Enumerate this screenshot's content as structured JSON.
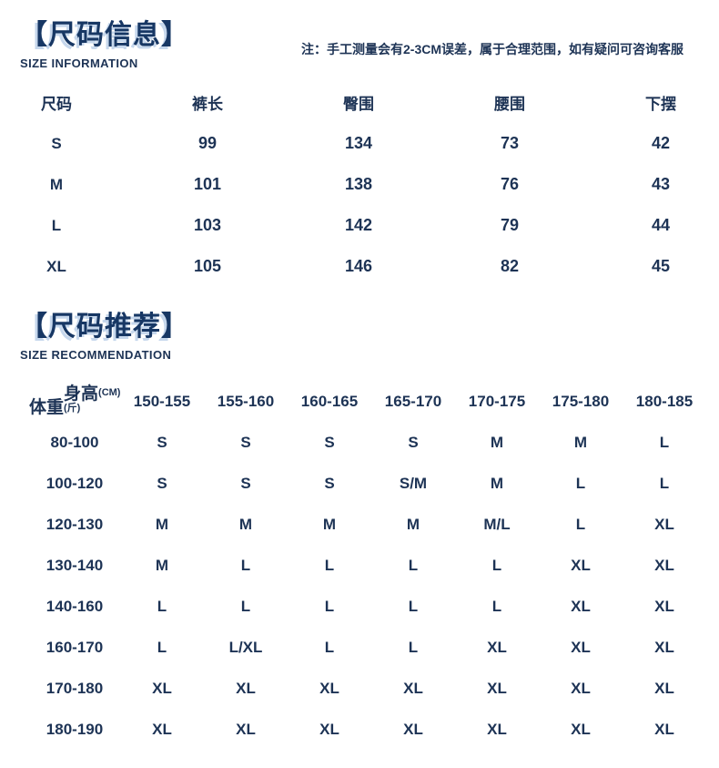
{
  "colors": {
    "text": "#1d3355",
    "title": "#173764",
    "title_shadow": "#c6d7ec",
    "background": "#ffffff"
  },
  "section_info": {
    "title": "【尺码信息】",
    "subtitle": "SIZE INFORMATION",
    "note": "注：手工测量会有2-3CM误差，属于合理范围，如有疑问可咨询客服"
  },
  "size_table": {
    "headers": [
      "尺码",
      "裤长",
      "臀围",
      "腰围",
      "下摆"
    ],
    "rows": [
      [
        "S",
        "99",
        "134",
        "73",
        "42"
      ],
      [
        "M",
        "101",
        "138",
        "76",
        "43"
      ],
      [
        "L",
        "103",
        "142",
        "79",
        "44"
      ],
      [
        "XL",
        "105",
        "146",
        "82",
        "45"
      ]
    ]
  },
  "section_recommend": {
    "title": "【尺码推荐】",
    "subtitle": "SIZE RECOMMENDATION"
  },
  "recommend_table": {
    "corner": {
      "weight_label": "体重",
      "weight_unit": "(斤)",
      "height_label": "身高",
      "height_unit": "(CM)"
    },
    "height_headers": [
      "150-155",
      "155-160",
      "160-165",
      "165-170",
      "170-175",
      "175-180",
      "180-185"
    ],
    "rows": [
      {
        "weight": "80-100",
        "values": [
          "S",
          "S",
          "S",
          "S",
          "M",
          "M",
          "L"
        ]
      },
      {
        "weight": "100-120",
        "values": [
          "S",
          "S",
          "S",
          "S/M",
          "M",
          "L",
          "L"
        ]
      },
      {
        "weight": "120-130",
        "values": [
          "M",
          "M",
          "M",
          "M",
          "M/L",
          "L",
          "XL"
        ]
      },
      {
        "weight": "130-140",
        "values": [
          "M",
          "L",
          "L",
          "L",
          "L",
          "XL",
          "XL"
        ]
      },
      {
        "weight": "140-160",
        "values": [
          "L",
          "L",
          "L",
          "L",
          "L",
          "XL",
          "XL"
        ]
      },
      {
        "weight": "160-170",
        "values": [
          "L",
          "L/XL",
          "L",
          "L",
          "XL",
          "XL",
          "XL"
        ]
      },
      {
        "weight": "170-180",
        "values": [
          "XL",
          "XL",
          "XL",
          "XL",
          "XL",
          "XL",
          "XL"
        ]
      },
      {
        "weight": "180-190",
        "values": [
          "XL",
          "XL",
          "XL",
          "XL",
          "XL",
          "XL",
          "XL"
        ]
      }
    ]
  }
}
